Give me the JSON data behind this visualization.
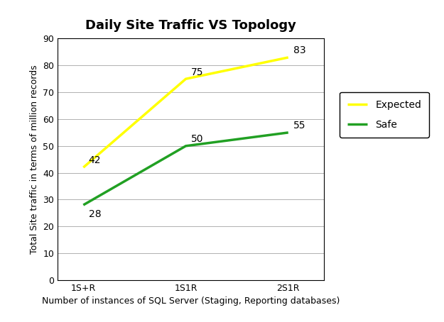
{
  "title": "Daily Site Traffic VS Topology",
  "xlabel": "Number of instances of SQL Server (Staging, Reporting databases)",
  "ylabel": "Total Site traffic in terms of million records",
  "categories": [
    "1S+R",
    "1S1R",
    "2S1R"
  ],
  "expected": [
    42,
    75,
    83
  ],
  "safe": [
    28,
    50,
    55
  ],
  "expected_color": "#FFFF00",
  "safe_color": "#21A023",
  "expected_label": "Expected",
  "safe_label": "Safe",
  "ylim": [
    0,
    90
  ],
  "yticks": [
    0,
    10,
    20,
    30,
    40,
    50,
    60,
    70,
    80,
    90
  ],
  "line_width": 2.5,
  "annotation_fontsize": 10,
  "title_fontsize": 13,
  "label_fontsize": 9,
  "legend_fontsize": 10,
  "background_color": "#ffffff",
  "grid_color": "#b0b0b0",
  "figsize": [
    6.25,
    4.54
  ],
  "dpi": 100
}
